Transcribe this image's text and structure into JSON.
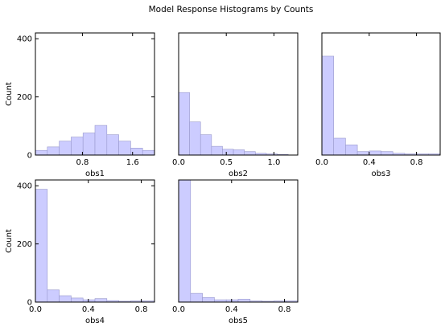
{
  "figure": {
    "title": "Model Response Histograms by Counts"
  },
  "chart_data": [
    {
      "type": "bar",
      "xlabel": "obs1",
      "ylabel": "Count",
      "xlim": [
        0.05,
        1.95
      ],
      "ylim": [
        0,
        420
      ],
      "xticks": [
        {
          "value": 0.8,
          "label": "0.8"
        },
        {
          "value": 1.6,
          "label": "1.6"
        }
      ],
      "yticks": [
        {
          "value": 0,
          "label": "0"
        },
        {
          "value": 200,
          "label": "200"
        },
        {
          "value": 400,
          "label": "400"
        }
      ],
      "bin_edges": [
        0.05,
        0.24,
        0.43,
        0.62,
        0.81,
        1.0,
        1.19,
        1.38,
        1.57,
        1.76,
        1.95
      ],
      "values": [
        16,
        28,
        48,
        62,
        76,
        102,
        70,
        48,
        24,
        16
      ]
    },
    {
      "type": "bar",
      "xlabel": "obs2",
      "ylabel": "",
      "xlim": [
        0.0,
        1.25
      ],
      "ylim": [
        0,
        420
      ],
      "xticks": [
        {
          "value": 0.0,
          "label": "0.0"
        },
        {
          "value": 0.5,
          "label": "0.5"
        },
        {
          "value": 1.0,
          "label": "1.0"
        }
      ],
      "yticks": [],
      "bin_edges": [
        0.0,
        0.115,
        0.23,
        0.345,
        0.46,
        0.575,
        0.69,
        0.805,
        0.92,
        1.035,
        1.15
      ],
      "values": [
        215,
        114,
        70,
        30,
        20,
        18,
        12,
        6,
        4,
        2
      ]
    },
    {
      "type": "bar",
      "xlabel": "obs3",
      "ylabel": "",
      "xlim": [
        0.0,
        1.0
      ],
      "ylim": [
        0,
        420
      ],
      "xticks": [
        {
          "value": 0.0,
          "label": "0.0"
        },
        {
          "value": 0.4,
          "label": "0.4"
        },
        {
          "value": 0.8,
          "label": "0.8"
        }
      ],
      "yticks": [],
      "bin_edges": [
        0.0,
        0.1,
        0.2,
        0.3,
        0.4,
        0.5,
        0.6,
        0.7,
        0.8,
        0.9,
        1.0
      ],
      "values": [
        340,
        58,
        35,
        12,
        14,
        12,
        6,
        4,
        4,
        4
      ]
    },
    {
      "type": "bar",
      "xlabel": "obs4",
      "ylabel": "Count",
      "xlim": [
        0.0,
        0.9
      ],
      "ylim": [
        0,
        420
      ],
      "xticks": [
        {
          "value": 0.0,
          "label": "0.0"
        },
        {
          "value": 0.4,
          "label": "0.4"
        },
        {
          "value": 0.8,
          "label": "0.8"
        }
      ],
      "yticks": [
        {
          "value": 0,
          "label": "0"
        },
        {
          "value": 200,
          "label": "200"
        },
        {
          "value": 400,
          "label": "400"
        }
      ],
      "bin_edges": [
        0.0,
        0.09,
        0.18,
        0.27,
        0.36,
        0.45,
        0.54,
        0.63,
        0.72,
        0.81,
        0.9
      ],
      "values": [
        388,
        42,
        22,
        14,
        8,
        12,
        5,
        3,
        4,
        4
      ]
    },
    {
      "type": "bar",
      "xlabel": "obs5",
      "ylabel": "",
      "xlim": [
        0.0,
        0.9
      ],
      "ylim": [
        0,
        420
      ],
      "xticks": [
        {
          "value": 0.0,
          "label": "0.0"
        },
        {
          "value": 0.4,
          "label": "0.4"
        },
        {
          "value": 0.8,
          "label": "0.8"
        }
      ],
      "yticks": [],
      "bin_edges": [
        0.0,
        0.09,
        0.18,
        0.27,
        0.36,
        0.45,
        0.54,
        0.63,
        0.72,
        0.81,
        0.9
      ],
      "values": [
        420,
        30,
        16,
        8,
        8,
        10,
        4,
        3,
        4,
        4
      ]
    }
  ],
  "style": {
    "bar_fill": "#ccccff",
    "bar_stroke": "#9999cc",
    "axis_color": "#000000"
  }
}
